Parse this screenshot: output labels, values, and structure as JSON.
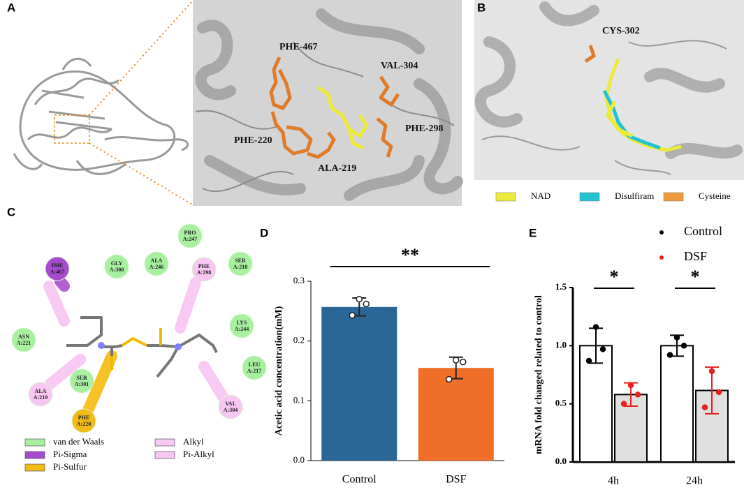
{
  "panel_labels": [
    "A",
    "B",
    "C",
    "D",
    "E"
  ],
  "panel_a": {
    "residues": [
      "PHE-467",
      "VAL-304",
      "PHE-220",
      "PHE-298",
      "ALA-219"
    ]
  },
  "panel_b": {
    "residue": "CYS-302",
    "legend": [
      "NAD",
      "Disulfiram",
      "Cysteine"
    ]
  },
  "panel_c": {
    "residues": [
      {
        "name": "PRO",
        "chain": "A:247"
      },
      {
        "name": "PHE",
        "chain": "A:467"
      },
      {
        "name": "GLY",
        "chain": "A:300"
      },
      {
        "name": "ALA",
        "chain": "A:246"
      },
      {
        "name": "PHE",
        "chain": "A:298"
      },
      {
        "name": "SER",
        "chain": "A:218"
      },
      {
        "name": "ASN",
        "chain": "A:221"
      },
      {
        "name": "LYS",
        "chain": "A:244"
      },
      {
        "name": "LEU",
        "chain": "A:217"
      },
      {
        "name": "SER",
        "chain": "A:301"
      },
      {
        "name": "ALA",
        "chain": "A:219"
      },
      {
        "name": "PHE",
        "chain": "A:220"
      },
      {
        "name": "VAL",
        "chain": "A:304"
      }
    ],
    "legend": [
      "van der Waals",
      "Pi-Sigma",
      "Pi-Sulfur",
      "Alkyl",
      "Pi-Alkyl"
    ]
  },
  "chart_data": [
    {
      "type": "bar",
      "y_label": "Acetic acid concentration(mM)",
      "categories": [
        "Control",
        "DSF"
      ],
      "values": [
        0.257,
        0.155
      ],
      "errors": [
        0.015,
        0.018
      ],
      "points": [
        [
          0.27,
          0.262,
          0.243
        ],
        [
          0.168,
          0.165,
          0.136
        ]
      ],
      "colors": [
        "#2a6797",
        "#ef6f28"
      ],
      "ylim": [
        0,
        0.3
      ],
      "yticks": [
        {
          "value": 0,
          "label": "0.0"
        },
        0.1,
        0.2,
        0.3
      ],
      "annotations": [
        "**"
      ]
    },
    {
      "type": "bar",
      "y_label": "mRNA fold changed related to control",
      "categories": [
        "4h",
        "24h"
      ],
      "series": [
        {
          "name": "Control",
          "color": "#000000",
          "fill": "#ffffff",
          "values": [
            1.0,
            1.0
          ],
          "errors": [
            0.15,
            0.09
          ],
          "points": [
            [
              1.16,
              0.97,
              0.87
            ],
            [
              1.07,
              1.0,
              0.92
            ]
          ]
        },
        {
          "name": "DSF",
          "color": "#e8201f",
          "fill": "#e0e0e0",
          "values": [
            0.58,
            0.615
          ],
          "errors": [
            0.1,
            0.2
          ],
          "points": [
            [
              0.66,
              0.58,
              0.5
            ],
            [
              0.78,
              0.6,
              0.47
            ]
          ]
        }
      ],
      "ylim": [
        0,
        1.5
      ],
      "yticks": [
        {
          "value": 0,
          "label": "0.0"
        },
        0.5,
        {
          "value": 1,
          "label": "1.0"
        },
        1.5
      ],
      "legend": "upper right",
      "annotations": [
        "*",
        "*"
      ]
    }
  ]
}
